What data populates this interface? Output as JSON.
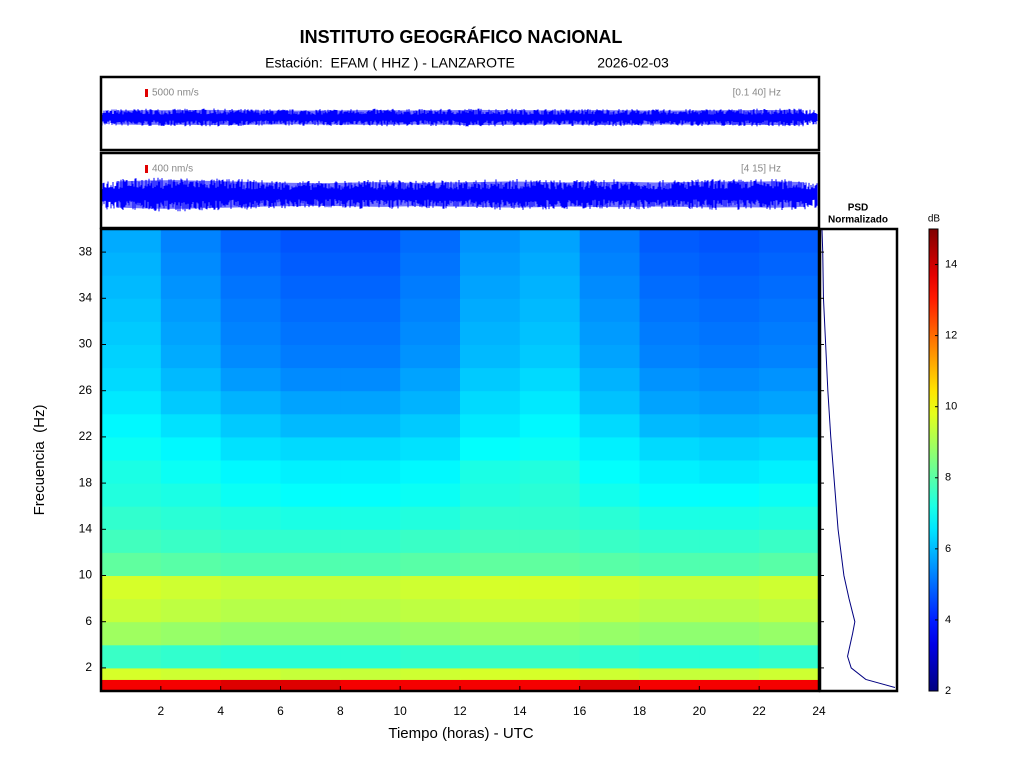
{
  "chart_data": {
    "type": "heatmap",
    "title": "INSTITUTO GEOGRÁFICO NACIONAL",
    "subtitle": "Estación:  EFAM ( HHZ ) - LANZAROTE",
    "date": "2026-02-03",
    "xlabel": "Tiempo (horas) - UTC",
    "ylabel": "Frecuencia  (Hz)",
    "xlim": [
      0,
      24
    ],
    "xticks": [
      2,
      4,
      6,
      8,
      10,
      12,
      14,
      16,
      18,
      20,
      22,
      24
    ],
    "ylim": [
      0,
      40
    ],
    "yticks": [
      2,
      6,
      10,
      14,
      18,
      22,
      26,
      30,
      34,
      38
    ],
    "x_edges": [
      0,
      2,
      4,
      6,
      8,
      10,
      12,
      14,
      16,
      18,
      20,
      22,
      24
    ],
    "y_edges": [
      0,
      1,
      2,
      4,
      6,
      8,
      10,
      12,
      14,
      16,
      18,
      20,
      22,
      24,
      26,
      28,
      30,
      32,
      34,
      36,
      38,
      40
    ],
    "z": [
      [
        13.5,
        13.5,
        13.8,
        13.8,
        13.5,
        13.5,
        13.5,
        13.5,
        13.8,
        13.5,
        13.5,
        13.5
      ],
      [
        9.6,
        9.5,
        9.5,
        9.4,
        9.4,
        9.5,
        9.6,
        9.6,
        9.5,
        9.4,
        9.4,
        9.5
      ],
      [
        7.6,
        7.5,
        7.4,
        7.4,
        7.4,
        7.5,
        7.6,
        7.6,
        7.5,
        7.4,
        7.4,
        7.5
      ],
      [
        8.9,
        8.8,
        8.7,
        8.7,
        8.7,
        8.8,
        8.9,
        8.9,
        8.8,
        8.7,
        8.7,
        8.8
      ],
      [
        9.4,
        9.3,
        9.2,
        9.2,
        9.2,
        9.3,
        9.4,
        9.4,
        9.3,
        9.2,
        9.2,
        9.3
      ],
      [
        9.6,
        9.5,
        9.4,
        9.4,
        9.4,
        9.5,
        9.6,
        9.6,
        9.5,
        9.4,
        9.4,
        9.5
      ],
      [
        8.1,
        8.0,
        7.9,
        7.9,
        7.9,
        8.0,
        8.1,
        8.1,
        8.0,
        7.9,
        7.9,
        8.0
      ],
      [
        7.7,
        7.6,
        7.5,
        7.5,
        7.5,
        7.6,
        7.7,
        7.7,
        7.6,
        7.5,
        7.5,
        7.6
      ],
      [
        7.5,
        7.4,
        7.3,
        7.2,
        7.2,
        7.3,
        7.5,
        7.5,
        7.4,
        7.2,
        7.2,
        7.3
      ],
      [
        7.3,
        7.2,
        7.0,
        6.9,
        6.9,
        7.0,
        7.3,
        7.4,
        7.1,
        6.9,
        6.9,
        7.0
      ],
      [
        7.2,
        7.0,
        6.8,
        6.7,
        6.7,
        6.8,
        7.2,
        7.3,
        6.9,
        6.7,
        6.6,
        6.7
      ],
      [
        7.0,
        6.8,
        6.5,
        6.4,
        6.4,
        6.5,
        6.9,
        7.0,
        6.7,
        6.4,
        6.3,
        6.4
      ],
      [
        6.8,
        6.5,
        6.2,
        6.0,
        6.0,
        6.2,
        6.6,
        6.8,
        6.4,
        6.0,
        5.9,
        6.0
      ],
      [
        6.6,
        6.2,
        5.9,
        5.7,
        5.7,
        5.9,
        6.4,
        6.6,
        6.1,
        5.7,
        5.6,
        5.7
      ],
      [
        6.4,
        6.0,
        5.6,
        5.4,
        5.4,
        5.7,
        6.2,
        6.4,
        5.9,
        5.5,
        5.4,
        5.5
      ],
      [
        6.3,
        5.8,
        5.4,
        5.2,
        5.2,
        5.5,
        6.0,
        6.2,
        5.7,
        5.3,
        5.2,
        5.3
      ],
      [
        6.2,
        5.7,
        5.3,
        5.1,
        5.1,
        5.4,
        5.9,
        6.1,
        5.6,
        5.2,
        5.1,
        5.2
      ],
      [
        6.1,
        5.6,
        5.2,
        5.0,
        5.0,
        5.3,
        5.8,
        6.0,
        5.5,
        5.1,
        5.0,
        5.1
      ],
      [
        6.0,
        5.5,
        5.1,
        4.9,
        4.9,
        5.2,
        5.7,
        5.9,
        5.4,
        5.0,
        4.9,
        5.0
      ],
      [
        5.9,
        5.4,
        5.0,
        4.8,
        4.8,
        5.1,
        5.6,
        5.8,
        5.3,
        4.9,
        4.8,
        4.9
      ],
      [
        5.8,
        5.3,
        4.9,
        4.7,
        4.7,
        5.0,
        5.5,
        5.7,
        5.2,
        4.8,
        4.7,
        4.8
      ]
    ],
    "colormap": "jet",
    "clim": [
      2,
      15
    ],
    "cticks": [
      2,
      4,
      6,
      8,
      10,
      12,
      14
    ],
    "clabel": "dB",
    "psd": {
      "title": "PSD",
      "subtitle": "Normalizado",
      "color": "#000080",
      "xlim": [
        0,
        1
      ],
      "freq": [
        0.3,
        1,
        2,
        3,
        5,
        6,
        8,
        10,
        14,
        18,
        22,
        26,
        30,
        34,
        38,
        40
      ],
      "values": [
        1.0,
        0.6,
        0.4,
        0.35,
        0.42,
        0.45,
        0.37,
        0.3,
        0.22,
        0.17,
        0.12,
        0.08,
        0.05,
        0.02,
        0.01,
        0.0
      ]
    },
    "traces": [
      {
        "scale": 5000,
        "scale_label": "5000 nm/s",
        "band_label": "[0.1 40] Hz",
        "color": "#0000ff",
        "amplitude": [
          4400,
          4600,
          4500,
          4800,
          4500,
          4400,
          4300,
          4400,
          4500,
          4600,
          4400,
          4500,
          4800,
          4600,
          4500,
          4400,
          4600,
          4500,
          4300,
          4400,
          4500,
          4600,
          4700,
          4600
        ]
      },
      {
        "scale": 400,
        "scale_label": "400 nm/s",
        "band_label": "[4 15] Hz",
        "color": "#0000ff",
        "amplitude": [
          650,
          700,
          720,
          680,
          650,
          600,
          580,
          560,
          600,
          620,
          580,
          600,
          620,
          650,
          640,
          600,
          620,
          640,
          600,
          620,
          650,
          640,
          660,
          620
        ]
      }
    ]
  }
}
